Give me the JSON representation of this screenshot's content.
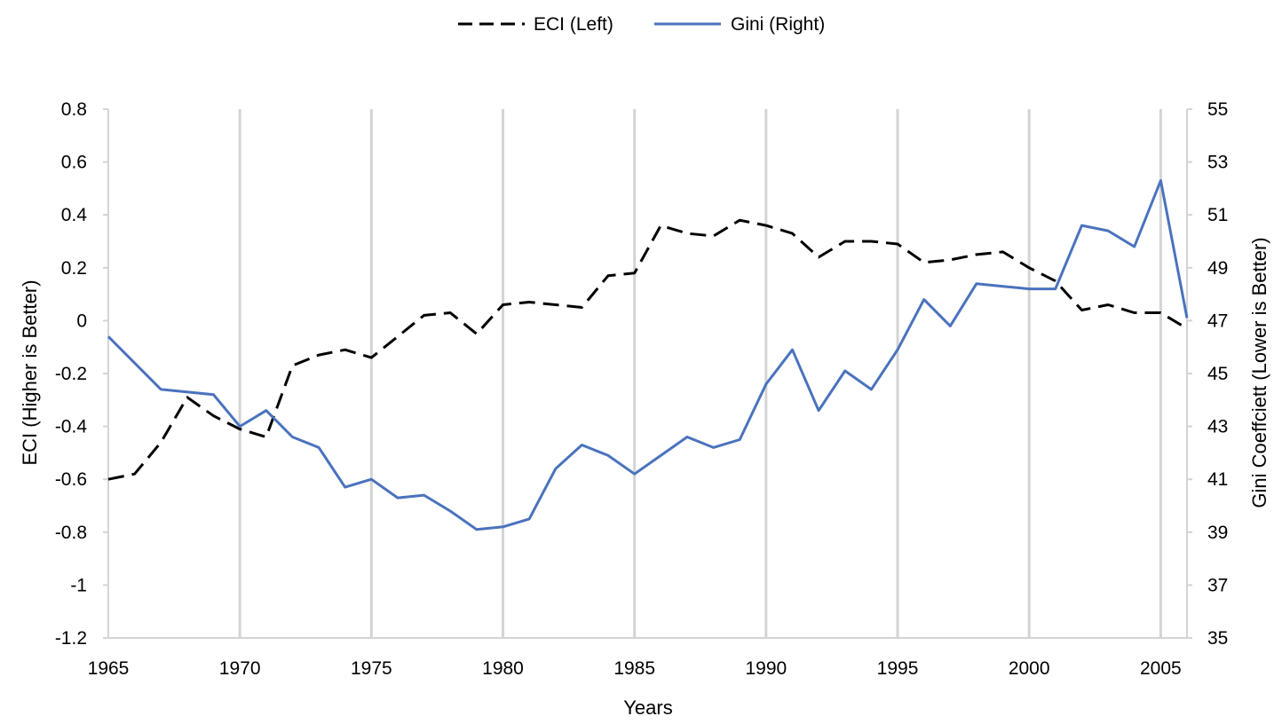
{
  "chart_data": {
    "type": "line",
    "title": "",
    "xlabel": "Years",
    "ylabel_left": "ECI  (Higher is Better)",
    "ylabel_right": "Gini Coeffciett (Lower is Better)",
    "xlim": [
      1965,
      2006
    ],
    "ylim_left": [
      -1.2,
      0.8
    ],
    "ylim_right": [
      35,
      55
    ],
    "x_ticks": [
      "1965",
      "1970",
      "1975",
      "1980",
      "1985",
      "1990",
      "1995",
      "2000",
      "2005"
    ],
    "y_left_ticks": [
      "0.8",
      "0.6",
      "0.4",
      "0.2",
      "0",
      "-0.2",
      "-0.4",
      "-0.6",
      "-0.8",
      "-1",
      "-1.2"
    ],
    "y_right_ticks": [
      "55",
      "53",
      "51",
      "49",
      "47",
      "45",
      "43",
      "41",
      "39",
      "37",
      "35"
    ],
    "vertical_gridlines": [
      1970,
      1975,
      1980,
      1985,
      1990,
      1995,
      2000,
      2005
    ],
    "grid": "vertical",
    "legend_position": "top-center",
    "series": [
      {
        "name": "ECI (Left)",
        "axis": "left",
        "style": "dashed",
        "color": "#000000",
        "x": [
          1965,
          1966,
          1967,
          1968,
          1969,
          1970,
          1971,
          1972,
          1973,
          1974,
          1975,
          1976,
          1977,
          1978,
          1979,
          1980,
          1981,
          1982,
          1983,
          1984,
          1985,
          1986,
          1987,
          1988,
          1989,
          1990,
          1991,
          1992,
          1993,
          1994,
          1995,
          1996,
          1997,
          1998,
          1999,
          2000,
          2001,
          2002,
          2003,
          2004,
          2005,
          2006
        ],
        "values": [
          -0.6,
          -0.58,
          -0.46,
          -0.29,
          -0.36,
          -0.41,
          -0.44,
          -0.17,
          -0.13,
          -0.11,
          -0.14,
          -0.06,
          0.02,
          0.03,
          -0.05,
          0.06,
          0.07,
          0.06,
          0.05,
          0.17,
          0.18,
          0.36,
          0.33,
          0.32,
          0.38,
          0.36,
          0.33,
          0.24,
          0.3,
          0.3,
          0.29,
          0.22,
          0.23,
          0.25,
          0.26,
          0.2,
          0.15,
          0.04,
          0.06,
          0.03,
          0.03,
          -0.03
        ]
      },
      {
        "name": "Gini (Right)",
        "axis": "right",
        "style": "solid",
        "color": "#4a72bd",
        "x": [
          1965,
          1967,
          1969,
          1970,
          1971,
          1972,
          1973,
          1974,
          1975,
          1976,
          1977,
          1978,
          1979,
          1980,
          1981,
          1982,
          1983,
          1984,
          1985,
          1986,
          1987,
          1988,
          1989,
          1990,
          1991,
          1992,
          1993,
          1994,
          1995,
          1996,
          1997,
          1998,
          1999,
          2000,
          2001,
          2002,
          2003,
          2004,
          2005,
          2006
        ],
        "values": [
          46.4,
          44.4,
          44.2,
          43.0,
          43.6,
          42.6,
          42.2,
          40.7,
          41.0,
          40.3,
          40.4,
          39.8,
          39.1,
          39.2,
          39.5,
          41.4,
          42.3,
          41.9,
          41.2,
          41.9,
          42.6,
          42.2,
          42.5,
          44.6,
          45.9,
          43.6,
          45.1,
          44.4,
          45.9,
          47.8,
          46.8,
          48.4,
          48.3,
          48.2,
          48.2,
          50.6,
          50.4,
          49.8,
          52.3,
          47.1
        ]
      }
    ]
  }
}
